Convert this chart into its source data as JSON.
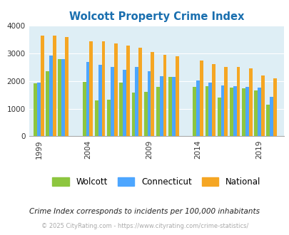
{
  "title": "Wolcott Property Crime Index",
  "title_color": "#1a6faf",
  "years": [
    1999,
    2000,
    2001,
    2004,
    2005,
    2006,
    2007,
    2008,
    2009,
    2010,
    2011,
    2014,
    2015,
    2016,
    2017,
    2018,
    2019,
    2020
  ],
  "wolcott": [
    1920,
    2360,
    2790,
    1970,
    1300,
    1330,
    1950,
    1590,
    1600,
    1800,
    2150,
    1790,
    1820,
    1400,
    1760,
    1750,
    1650,
    1150
  ],
  "connecticut": [
    1940,
    2930,
    2800,
    2680,
    2590,
    2510,
    2420,
    2500,
    2370,
    2180,
    2150,
    2010,
    1950,
    1840,
    1810,
    1780,
    1760,
    1420
  ],
  "national": [
    3640,
    3650,
    3600,
    3450,
    3450,
    3360,
    3280,
    3220,
    3050,
    2960,
    2900,
    2750,
    2620,
    2510,
    2500,
    2470,
    2200,
    2110
  ],
  "wolcott_color": "#8dc63f",
  "connecticut_color": "#4da6ff",
  "national_color": "#f5a623",
  "bg_color": "#deeef5",
  "ylim": [
    0,
    4000
  ],
  "yticks": [
    0,
    1000,
    2000,
    3000,
    4000
  ],
  "tick_years": [
    1999,
    2004,
    2009,
    2014,
    2019
  ],
  "subtitle": "Crime Index corresponds to incidents per 100,000 inhabitants",
  "footer": "© 2025 CityRating.com - https://www.cityrating.com/crime-statistics/",
  "legend_labels": [
    "Wolcott",
    "Connecticut",
    "National"
  ]
}
